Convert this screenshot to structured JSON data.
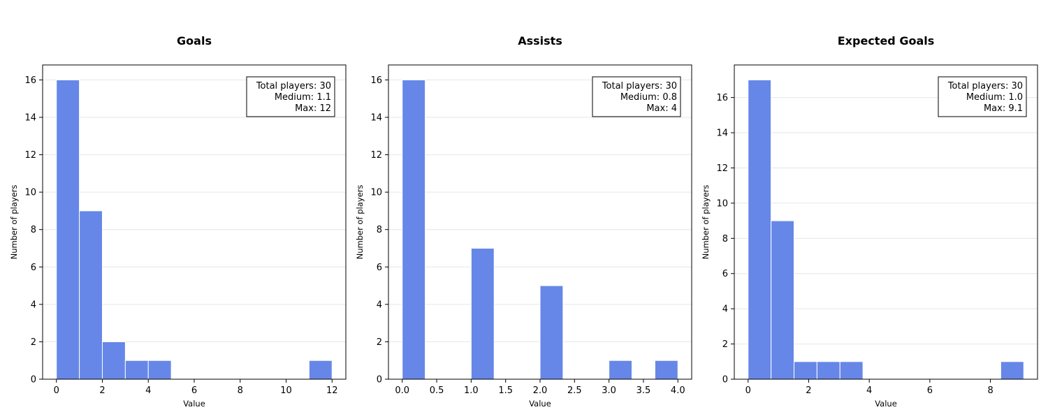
{
  "colors": {
    "bar": "#6687e8",
    "bar_edge": "#ffffff",
    "grid": "#e6e6e6"
  },
  "chart_data": [
    {
      "type": "bar",
      "title": "Goals",
      "xlabel": "Value",
      "ylabel": "Number of players",
      "xlim": [
        -0.6,
        12.6
      ],
      "ylim": [
        0,
        16.8
      ],
      "xticks": [
        0,
        2,
        4,
        6,
        8,
        10,
        12
      ],
      "xtick_labels": [
        "0",
        "2",
        "4",
        "6",
        "8",
        "10",
        "12"
      ],
      "yticks": [
        0,
        2,
        4,
        6,
        8,
        10,
        12,
        14,
        16
      ],
      "ytick_labels": [
        "0",
        "2",
        "4",
        "6",
        "8",
        "10",
        "12",
        "14",
        "16"
      ],
      "grid": "y",
      "bin_edges": [
        0,
        1,
        2,
        3,
        4,
        5,
        6,
        7,
        8,
        9,
        10,
        11,
        12
      ],
      "counts": [
        16,
        9,
        2,
        1,
        1,
        0,
        0,
        0,
        0,
        0,
        0,
        1
      ],
      "stats": [
        "Total players: 30",
        "Medium: 1.1",
        "Max: 12"
      ],
      "stats_position": "top-right"
    },
    {
      "type": "bar",
      "title": "Assists",
      "xlabel": "Value",
      "ylabel": "Number of players",
      "xlim": [
        -0.2,
        4.2
      ],
      "ylim": [
        0,
        16.8
      ],
      "xticks": [
        0,
        0.5,
        1,
        1.5,
        2,
        2.5,
        3,
        3.5,
        4
      ],
      "xtick_labels": [
        "0.0",
        "0.5",
        "1.0",
        "1.5",
        "2.0",
        "2.5",
        "3.0",
        "3.5",
        "4.0"
      ],
      "yticks": [
        0,
        2,
        4,
        6,
        8,
        10,
        12,
        14,
        16
      ],
      "ytick_labels": [
        "0",
        "2",
        "4",
        "6",
        "8",
        "10",
        "12",
        "14",
        "16"
      ],
      "grid": "y",
      "bin_edges": [
        0,
        0.3333,
        0.6667,
        1,
        1.3333,
        1.6667,
        2,
        2.3333,
        2.6667,
        3,
        3.3333,
        3.6667,
        4
      ],
      "counts": [
        16,
        0,
        0,
        7,
        0,
        0,
        5,
        0,
        0,
        1,
        0,
        1
      ],
      "stats": [
        "Total players: 30",
        "Medium: 0.8",
        "Max: 4"
      ],
      "stats_position": "top-right"
    },
    {
      "type": "bar",
      "title": "Expected Goals",
      "xlabel": "Value",
      "ylabel": "Number of players",
      "xlim": [
        -0.455,
        9.555
      ],
      "ylim": [
        0,
        17.85
      ],
      "xticks": [
        0,
        2,
        4,
        6,
        8
      ],
      "xtick_labels": [
        "0",
        "2",
        "4",
        "6",
        "8"
      ],
      "yticks": [
        0,
        2,
        4,
        6,
        8,
        10,
        12,
        14,
        16
      ],
      "ytick_labels": [
        "0",
        "2",
        "4",
        "6",
        "8",
        "10",
        "12",
        "14",
        "16"
      ],
      "grid": "y",
      "bin_edges": [
        0,
        0.7583,
        1.5167,
        2.275,
        3.0333,
        3.7917,
        4.55,
        5.3083,
        6.0667,
        6.825,
        7.5833,
        8.3417,
        9.1
      ],
      "counts": [
        17,
        9,
        1,
        1,
        1,
        0,
        0,
        0,
        0,
        0,
        0,
        1
      ],
      "stats": [
        "Total players: 30",
        "Medium: 1.0",
        "Max: 9.1"
      ],
      "stats_position": "top-right"
    }
  ]
}
